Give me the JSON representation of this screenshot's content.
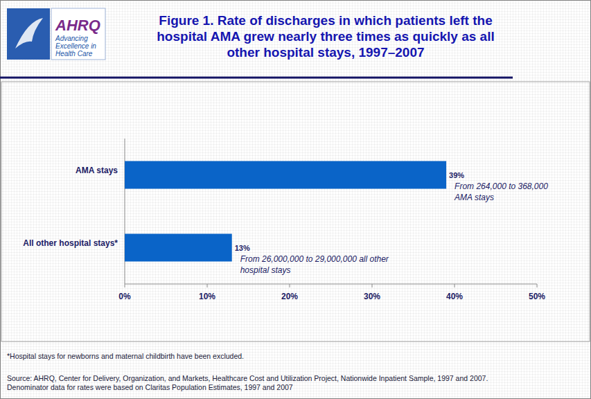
{
  "chart_data": {
    "type": "bar",
    "orientation": "horizontal",
    "title": "Figure 1. Rate of discharges in which patients left the hospital AMA grew nearly three times as quickly as all other hospital stays, 1997–2007",
    "logo": {
      "name": "AHRQ",
      "tagline": "Advancing Excellence in Health Care"
    },
    "categories": [
      "AMA stays",
      "All other hospital stays*"
    ],
    "values": [
      39,
      13
    ],
    "value_labels": [
      "39%",
      "13%"
    ],
    "data_labels": true,
    "color": "#0a64c8",
    "xlim": [
      0,
      50
    ],
    "xticks": [
      {
        "value": 0,
        "label": "0%"
      },
      {
        "value": 10,
        "label": "10%"
      },
      {
        "value": 20,
        "label": "20%"
      },
      {
        "value": 30,
        "label": "30%"
      },
      {
        "value": 40,
        "label": "40%"
      },
      {
        "value": 50,
        "label": "50%"
      }
    ],
    "grid": false,
    "annotations": [
      "From 264,000 to 368,000 AMA stays",
      "From 26,000,000 to 29,000,000 all other hospital stays"
    ],
    "notes": [
      "*Hospital stays for newborns and maternal childbirth have been excluded.",
      "Source: AHRQ, Center for Delivery, Organization, and Markets, Healthcare Cost and Utilization Project, Nationwide Inpatient Sample, 1997 and 2007.",
      "Denominator data for rates were based on Claritas Population Estimates, 1997 and 2007"
    ]
  }
}
